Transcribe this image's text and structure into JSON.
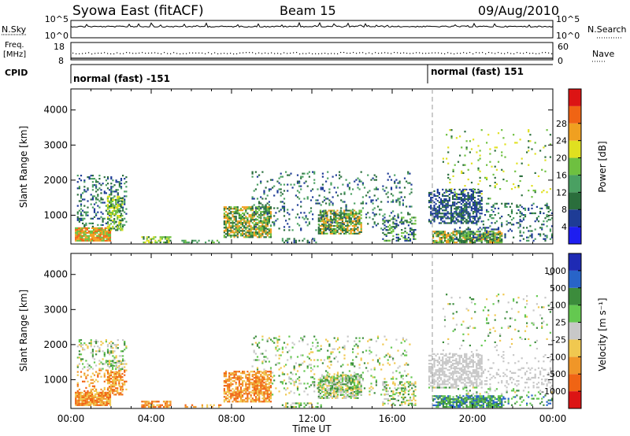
{
  "header": {
    "title": "Syowa East (fitACF)",
    "beam": "Beam 15",
    "date": "09/Aug/2010"
  },
  "status_panels": {
    "nsky_label": "N.Sky",
    "nsky_ticks": [
      "10^5",
      "10^0"
    ],
    "nsearch_label": "N.Search",
    "nsearch_ticks": [
      "10^5",
      "10^0"
    ],
    "freq_label_1": "Freq.",
    "freq_label_2": "[MHz]",
    "freq_ticks": [
      "18",
      "8"
    ],
    "nave_label": "Nave",
    "nave_ticks": [
      "60",
      "0"
    ],
    "cpid_label": "CPID",
    "cpid_segments": [
      {
        "label": "normal (fast) -151",
        "start_hour": 0
      },
      {
        "label": "normal (fast) 151",
        "start_hour": 18
      }
    ]
  },
  "chart_data": [
    {
      "type": "heatmap",
      "name": "power",
      "ylabel": "Slant Range [km]",
      "xlabel": "Time UT",
      "x_ticks": [
        "00:00",
        "04:00",
        "08:00",
        "12:00",
        "16:00",
        "20:00",
        "00:00"
      ],
      "y_ticks": [
        "1000",
        "2000",
        "3000",
        "4000"
      ],
      "ylim": [
        180,
        4600
      ],
      "xlim_hours": [
        0,
        24
      ],
      "colorbar_label": "Power [dB]",
      "colorbar_ticks": [
        "4",
        "8",
        "12",
        "16",
        "20",
        "24",
        "28"
      ],
      "colorbar_colors": [
        "#1e1ef0",
        "#1e3c96",
        "#2a6e3c",
        "#4aa062",
        "#6ec040",
        "#e0e020",
        "#f0a020",
        "#f06414",
        "#dc1414"
      ]
    },
    {
      "type": "heatmap",
      "name": "velocity",
      "ylabel": "Slant Range [km]",
      "xlabel": "Time UT",
      "x_ticks": [
        "00:00",
        "04:00",
        "08:00",
        "12:00",
        "16:00",
        "20:00",
        "00:00"
      ],
      "y_ticks": [
        "1000",
        "2000",
        "3000",
        "4000"
      ],
      "ylim": [
        180,
        4600
      ],
      "xlim_hours": [
        0,
        24
      ],
      "colorbar_label": "Velocity [m s⁻¹]",
      "colorbar_ticks": [
        "1000",
        "500",
        "100",
        "25",
        "-25",
        "-100",
        "-500",
        "-1000"
      ],
      "colorbar_colors": [
        "#1e2ab4",
        "#2864c8",
        "#3c8c3c",
        "#64c850",
        "#c8c8c8",
        "#f0c850",
        "#f09628",
        "#f06414",
        "#dc1414"
      ]
    }
  ]
}
